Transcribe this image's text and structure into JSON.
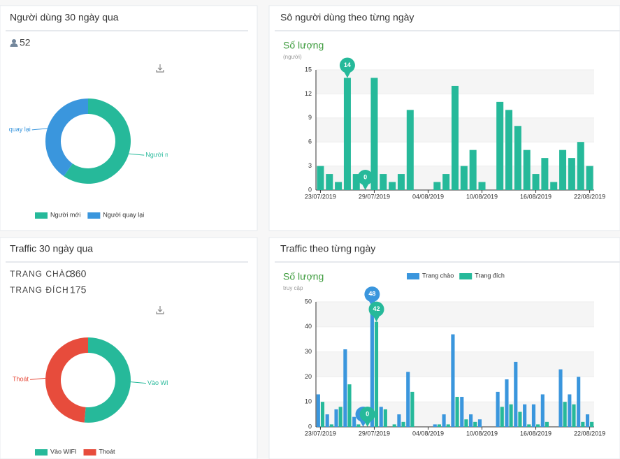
{
  "panels": [
    {
      "title": "Người dùng 30 ngày qua",
      "total": 52
    },
    {
      "title": "Sô người dùng theo từng ngày"
    },
    {
      "title": "Traffic 30 ngày qua",
      "stats": [
        {
          "label": "TRANG CHÀO",
          "value": 360
        },
        {
          "label": "TRANG ĐÍCH",
          "value": 175
        }
      ]
    },
    {
      "title": "Traffic theo từng ngày"
    }
  ],
  "chart_data": [
    {
      "type": "donut",
      "categories": [
        "Người mới",
        "Người quay lại"
      ],
      "values": [
        31,
        21
      ],
      "colors": [
        "#26b99a",
        "#3a96dd"
      ],
      "legend": "bottom"
    },
    {
      "type": "bar",
      "title": "Số lượng",
      "subtitle": "(người)",
      "categories": [
        "23/07/2019",
        null,
        null,
        null,
        null,
        null,
        "29/07/2019",
        null,
        null,
        null,
        null,
        null,
        "04/08/2019",
        null,
        null,
        null,
        null,
        null,
        "10/08/2019",
        null,
        null,
        null,
        null,
        null,
        "16/08/2019",
        null,
        null,
        null,
        null,
        null,
        "22/08/2019"
      ],
      "values": [
        3,
        2,
        1,
        14,
        2,
        0,
        14,
        2,
        1,
        2,
        10,
        0,
        0,
        1,
        2,
        13,
        3,
        5,
        1,
        0,
        11,
        10,
        8,
        5,
        2,
        4,
        1,
        5,
        4,
        6,
        3
      ],
      "color": "#26b99a",
      "ylim": [
        0,
        15
      ],
      "yticks": [
        0,
        3,
        6,
        9,
        12,
        15
      ],
      "grid": true
    },
    {
      "type": "donut",
      "categories": [
        "Vào WIFI",
        "Thoát"
      ],
      "values": [
        185,
        175
      ],
      "colors": [
        "#26b99a",
        "#e74c3c"
      ],
      "legend": "bottom"
    },
    {
      "type": "bar",
      "title": "Số lượng",
      "subtitle": "truy cập",
      "categories": [
        "23/07/2019",
        null,
        null,
        null,
        null,
        null,
        "29/07/2019",
        null,
        null,
        null,
        null,
        null,
        "04/08/2019",
        null,
        null,
        null,
        null,
        null,
        "10/08/2019",
        null,
        null,
        null,
        null,
        null,
        "16/08/2019",
        null,
        null,
        null,
        null,
        null,
        "22/08/2019"
      ],
      "series": [
        {
          "name": "Trang chào",
          "color": "#3a96dd",
          "values": [
            13,
            5,
            7,
            31,
            4,
            0,
            48,
            8,
            0,
            5,
            22,
            0,
            0,
            1,
            5,
            37,
            12,
            5,
            3,
            0,
            14,
            19,
            26,
            9,
            9,
            13,
            0,
            23,
            13,
            20,
            5
          ]
        },
        {
          "name": "Trang đích",
          "color": "#26b99a",
          "values": [
            10,
            1,
            8,
            17,
            1,
            0,
            42,
            7,
            1,
            2,
            14,
            0,
            0,
            1,
            1,
            12,
            3,
            2,
            0,
            0,
            8,
            9,
            6,
            1,
            1,
            2,
            0,
            10,
            9,
            2,
            2
          ]
        }
      ],
      "ylim": [
        0,
        50
      ],
      "yticks": [
        0,
        10,
        20,
        30,
        40,
        50
      ],
      "grid": true,
      "legend": "top"
    }
  ]
}
